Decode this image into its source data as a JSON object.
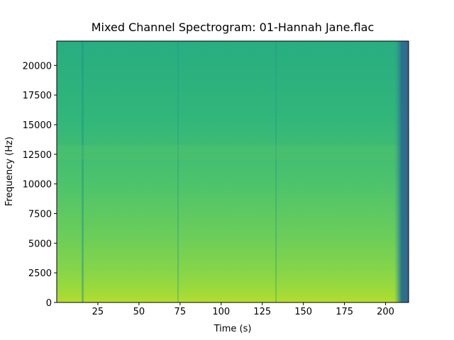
{
  "chart_data": {
    "type": "spectrogram",
    "title": "Mixed Channel Spectrogram: 01-Hannah Jane.flac",
    "x_label": "Time (s)",
    "y_label": "Frequency (Hz)",
    "xlim": [
      0,
      214
    ],
    "ylim": [
      0,
      22050
    ],
    "xticks": [
      25,
      50,
      75,
      100,
      125,
      150,
      175,
      200
    ],
    "yticks": [
      0,
      2500,
      5000,
      7500,
      10000,
      12500,
      15000,
      17500,
      20000
    ]
  }
}
